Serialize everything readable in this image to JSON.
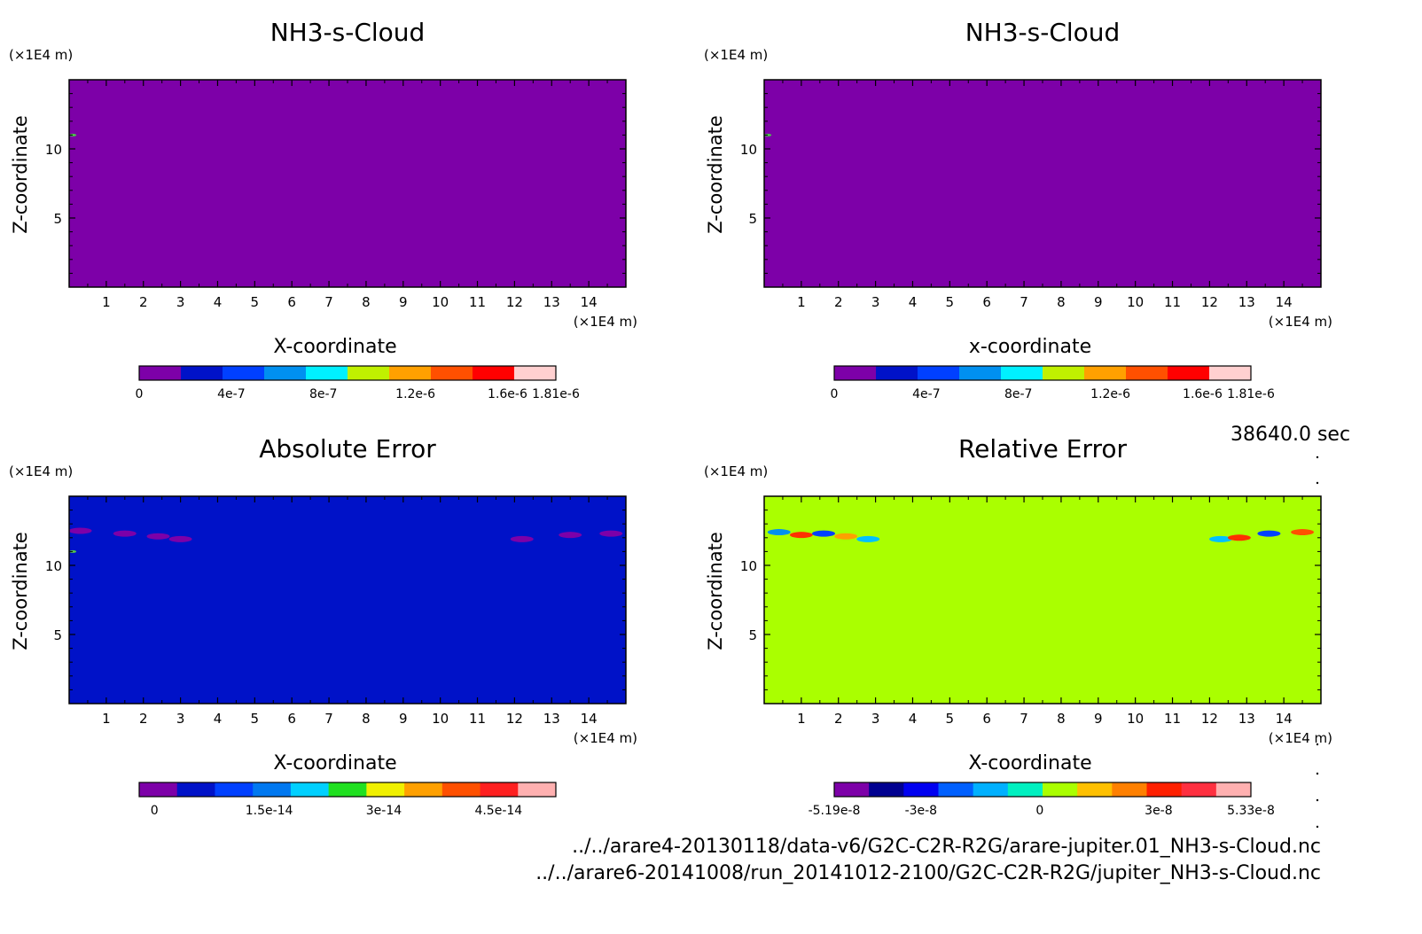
{
  "time_label": "38640.0 sec",
  "footer_lines": [
    "../../arare4-20130118/data-v6/G2C-C2R-R2G/arare-jupiter.01_NH3-s-Cloud.nc",
    "../../arare6-20141008/run_20141012-2100/G2C-C2R-R2G/jupiter_NH3-s-Cloud.nc"
  ],
  "chart_data": [
    {
      "type": "heatmap",
      "title": "NH3-s-Cloud",
      "xlabel": "X-coordinate",
      "ylabel": "Z-coordinate",
      "x_unit": "(×1E4 m)",
      "y_unit": "(×1E4 m)",
      "xlim": [
        0,
        15
      ],
      "ylim": [
        0,
        15
      ],
      "x_ticks": [
        1,
        2,
        3,
        4,
        5,
        6,
        7,
        8,
        9,
        10,
        11,
        12,
        13,
        14
      ],
      "y_ticks": [
        5,
        10
      ],
      "background_color": "#7d00a8",
      "features": [
        {
          "x": 0.1,
          "z": 11.0,
          "value_level": "green",
          "color": "#4fc04f"
        }
      ],
      "colorbar": {
        "colors": [
          "#7d00a8",
          "#0012c8",
          "#0040ff",
          "#0090f0",
          "#00f0ff",
          "#c0f000",
          "#ffa000",
          "#ff5000",
          "#ff0000",
          "#ffd0d0"
        ],
        "tick_labels": [
          "0",
          "4e-7",
          "8e-7",
          "1.2e-6",
          "1.6e-6",
          "1.81e-6"
        ],
        "tick_values": [
          0,
          4e-07,
          8e-07,
          1.2e-06,
          1.6e-06,
          1.81e-06
        ],
        "range": [
          0,
          1.81e-06
        ]
      }
    },
    {
      "type": "heatmap",
      "title": "NH3-s-Cloud",
      "xlabel": "x-coordinate",
      "ylabel": "Z-coordinate",
      "x_unit": "(×1E4 m)",
      "y_unit": "(×1E4 m)",
      "xlim": [
        0,
        15
      ],
      "ylim": [
        0,
        15
      ],
      "x_ticks": [
        1,
        2,
        3,
        4,
        5,
        6,
        7,
        8,
        9,
        10,
        11,
        12,
        13,
        14
      ],
      "y_ticks": [
        5,
        10
      ],
      "background_color": "#7d00a8",
      "features": [
        {
          "x": 0.1,
          "z": 11.0,
          "value_level": "green",
          "color": "#4fc04f"
        }
      ],
      "colorbar": {
        "colors": [
          "#7d00a8",
          "#0012c8",
          "#0040ff",
          "#0090f0",
          "#00f0ff",
          "#c0f000",
          "#ffa000",
          "#ff5000",
          "#ff0000",
          "#ffd0d0"
        ],
        "tick_labels": [
          "0",
          "4e-7",
          "8e-7",
          "1.2e-6",
          "1.6e-6",
          "1.81e-6"
        ],
        "tick_values": [
          0,
          4e-07,
          8e-07,
          1.2e-06,
          1.6e-06,
          1.81e-06
        ],
        "range": [
          0,
          1.81e-06
        ]
      }
    },
    {
      "type": "heatmap",
      "title": "Absolute Error",
      "xlabel": "X-coordinate",
      "ylabel": "Z-coordinate",
      "x_unit": "(×1E4 m)",
      "y_unit": "(×1E4 m)",
      "xlim": [
        0,
        15
      ],
      "ylim": [
        0,
        15
      ],
      "x_ticks": [
        1,
        2,
        3,
        4,
        5,
        6,
        7,
        8,
        9,
        10,
        11,
        12,
        13,
        14
      ],
      "y_ticks": [
        5,
        10
      ],
      "background_color": "#0012c8",
      "features": [
        {
          "x": 0.3,
          "z": 12.5,
          "value_level": "low",
          "color": "#7d00a8"
        },
        {
          "x": 1.5,
          "z": 12.3,
          "value_level": "low",
          "color": "#7d00a8"
        },
        {
          "x": 2.4,
          "z": 12.1,
          "value_level": "low",
          "color": "#7d00a8"
        },
        {
          "x": 3.0,
          "z": 11.9,
          "value_level": "low",
          "color": "#7d00a8"
        },
        {
          "x": 12.2,
          "z": 11.9,
          "value_level": "low",
          "color": "#7d00a8"
        },
        {
          "x": 13.5,
          "z": 12.2,
          "value_level": "low",
          "color": "#7d00a8"
        },
        {
          "x": 14.6,
          "z": 12.3,
          "value_level": "low",
          "color": "#7d00a8"
        },
        {
          "x": 0.1,
          "z": 11.0,
          "value_level": "green",
          "color": "#4fc04f"
        }
      ],
      "colorbar": {
        "colors": [
          "#7d00a8",
          "#0012c8",
          "#0040ff",
          "#0078f0",
          "#00d0ff",
          "#20e020",
          "#f0f000",
          "#ffa000",
          "#ff5000",
          "#ff2020",
          "#ffb0b0"
        ],
        "tick_labels": [
          "0",
          "1.5e-14",
          "3e-14",
          "4.5e-14"
        ],
        "tick_values": [
          0,
          1.5e-14,
          3e-14,
          4.5e-14
        ],
        "range": [
          -2e-15,
          5.25e-14
        ]
      }
    },
    {
      "type": "heatmap",
      "title": "Relative Error",
      "xlabel": "X-coordinate",
      "ylabel": "Z-coordinate",
      "x_unit": "(×1E4 m)",
      "y_unit": "(×1E4 m)",
      "xlim": [
        0,
        15
      ],
      "ylim": [
        0,
        15
      ],
      "x_ticks": [
        1,
        2,
        3,
        4,
        5,
        6,
        7,
        8,
        9,
        10,
        11,
        12,
        13,
        14
      ],
      "y_ticks": [
        5,
        10
      ],
      "background_color": "#aaff00",
      "features": [
        {
          "x": 0.4,
          "z": 12.4,
          "value_level": "negative",
          "color": "#0090f0"
        },
        {
          "x": 1.0,
          "z": 12.2,
          "value_level": "positive",
          "color": "#ff3000"
        },
        {
          "x": 1.6,
          "z": 12.3,
          "value_level": "negative",
          "color": "#0040ff"
        },
        {
          "x": 2.2,
          "z": 12.1,
          "value_level": "positive",
          "color": "#ffa000"
        },
        {
          "x": 2.8,
          "z": 11.9,
          "value_level": "negative",
          "color": "#00c0ff"
        },
        {
          "x": 12.3,
          "z": 11.9,
          "value_level": "negative",
          "color": "#00c0ff"
        },
        {
          "x": 12.8,
          "z": 12.0,
          "value_level": "positive",
          "color": "#ff3000"
        },
        {
          "x": 13.6,
          "z": 12.3,
          "value_level": "negative",
          "color": "#0040ff"
        },
        {
          "x": 14.5,
          "z": 12.4,
          "value_level": "positive",
          "color": "#ff5000"
        }
      ],
      "colorbar": {
        "colors": [
          "#7d00a8",
          "#000090",
          "#0000f0",
          "#0060ff",
          "#00b0ff",
          "#00f0c0",
          "#aaff00",
          "#ffc000",
          "#ff8000",
          "#ff2000",
          "#ff3040",
          "#ffb0b0"
        ],
        "tick_labels": [
          "-5.19e-8",
          "-3e-8",
          "0",
          "3e-8",
          "5.33e-8"
        ],
        "tick_values": [
          -5.19e-08,
          -3e-08,
          0,
          3e-08,
          5.33e-08
        ],
        "range": [
          -5.19e-08,
          5.33e-08
        ]
      }
    }
  ]
}
